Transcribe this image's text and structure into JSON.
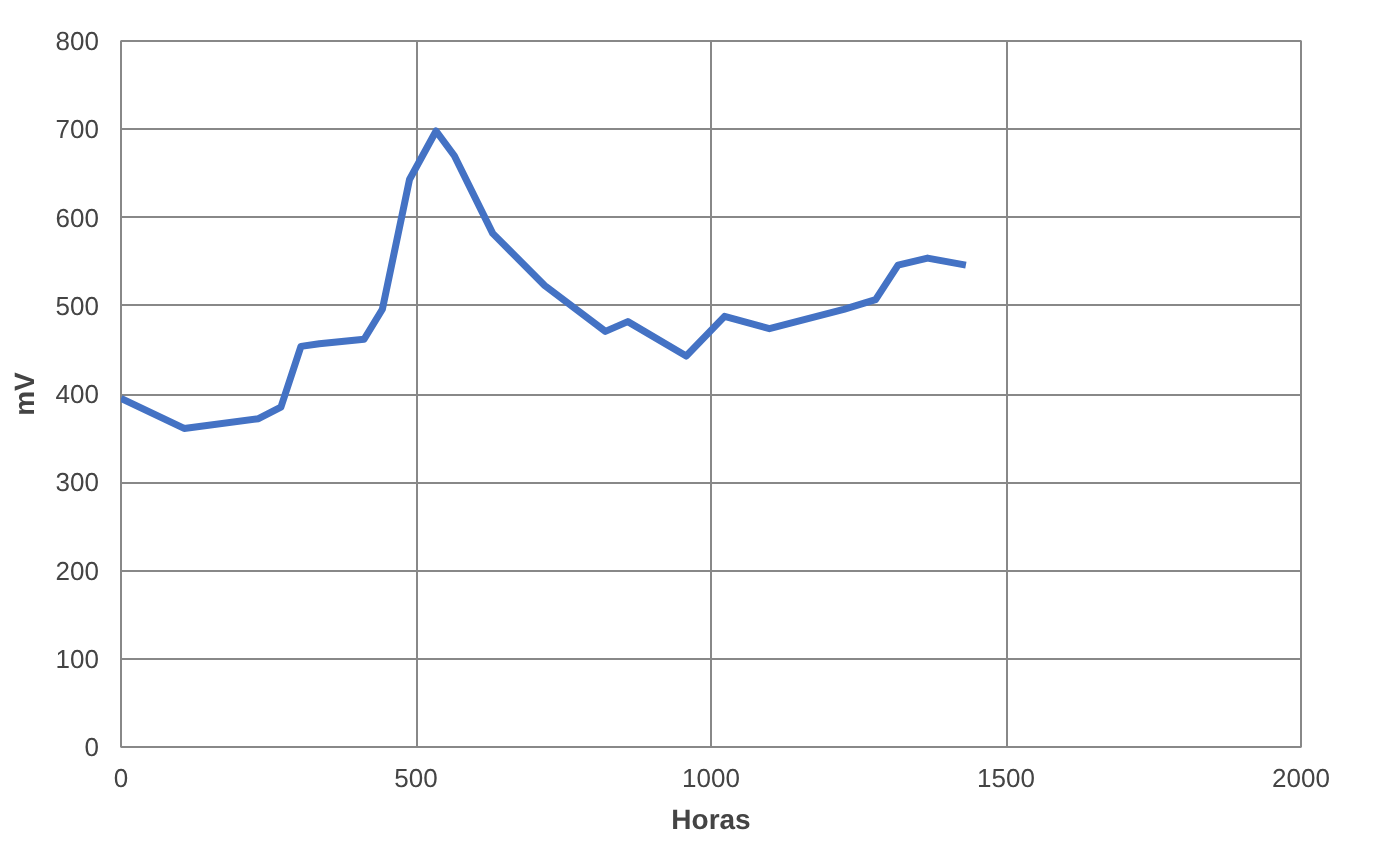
{
  "chart_data": {
    "type": "line",
    "xlabel": "Horas",
    "ylabel": "mV",
    "series": [
      {
        "color": "#4472c4",
        "x": [
          0,
          107,
          233,
          271,
          305,
          336,
          412,
          443,
          489,
          534,
          565,
          630,
          718,
          821,
          859,
          958,
          1023,
          1099,
          1225,
          1279,
          1317,
          1367,
          1432
        ],
        "values": [
          395,
          361,
          372,
          385,
          454,
          457,
          462,
          496,
          643,
          698,
          670,
          582,
          523,
          471,
          482,
          443,
          488,
          474,
          496,
          507,
          546,
          554,
          546
        ]
      }
    ],
    "xlim": [
      0,
      2000
    ],
    "xticks": [
      0,
      500,
      1000,
      1500,
      2000
    ],
    "ylim": [
      0,
      800
    ],
    "yticks": [
      0,
      100,
      200,
      300,
      400,
      500,
      600,
      700,
      800
    ],
    "grid": true,
    "marker": "none",
    "line_style": "solid"
  }
}
